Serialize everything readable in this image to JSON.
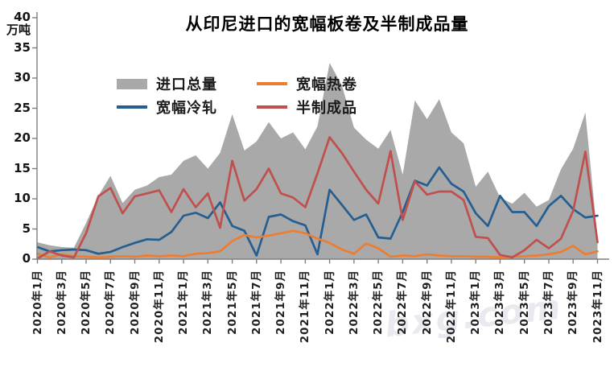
{
  "title": "从印尼进口的宽幅板卷及半制成品量",
  "unit_label": "万吨",
  "watermark": "bxg.com",
  "legend": [
    {
      "label": "进口总量",
      "type": "area",
      "color": "#A9A9A9"
    },
    {
      "label": "宽幅热卷",
      "type": "line",
      "color": "#ED7D31"
    },
    {
      "label": "宽幅冷轧",
      "type": "line",
      "color": "#255E91"
    },
    {
      "label": "半制成品",
      "type": "line",
      "color": "#C0504D"
    }
  ],
  "chart_data": {
    "type": "area",
    "title": "从印尼进口的宽幅板卷及半制成品量",
    "ylabel": "万吨",
    "ylim": [
      0,
      40
    ],
    "y_ticks": [
      0,
      5,
      10,
      15,
      20,
      25,
      30,
      35,
      40
    ],
    "grid": false,
    "legend_position": "top-inside",
    "x": [
      "2020年1月",
      "2020年2月",
      "2020年3月",
      "2020年4月",
      "2020年5月",
      "2020年6月",
      "2020年7月",
      "2020年8月",
      "2020年9月",
      "2020年10月",
      "2020年11月",
      "2020年12月",
      "2021年1月",
      "2021年2月",
      "2021年3月",
      "2021年4月",
      "2021年5月",
      "2021年6月",
      "2021年7月",
      "2021年8月",
      "2021年9月",
      "2021年10月",
      "2021年11月",
      "2021年12月",
      "2022年1月",
      "2022年2月",
      "2022年3月",
      "2022年4月",
      "2022年5月",
      "2022年6月",
      "2022年7月",
      "2022年8月",
      "2022年9月",
      "2022年10月",
      "2022年11月",
      "2022年12月",
      "2023年1月",
      "2023年2月",
      "2023年3月",
      "2023年4月",
      "2023年5月",
      "2023年6月",
      "2023年7月",
      "2023年8月",
      "2023年9月",
      "2023年10月",
      "2023年11月"
    ],
    "x_tick_labels": [
      "2020年1月",
      "2020年3月",
      "2020年5月",
      "2020年7月",
      "2020年9月",
      "2020年11月",
      "2021年1月",
      "2021年3月",
      "2021年5月",
      "2021年7月",
      "2021年9月",
      "2021年11月",
      "2022年1月",
      "2022年3月",
      "2022年5月",
      "2022年7月",
      "2022年9月",
      "2022年11月",
      "2023年1月",
      "2023年3月",
      "2023年5月",
      "2023年7月",
      "2023年9月",
      "2023年11月"
    ],
    "series": [
      {
        "name": "进口总量",
        "type": "area",
        "color": "#A9A9A9",
        "values": [
          2.8,
          2.3,
          2.0,
          1.9,
          6.0,
          10.5,
          13.8,
          9.3,
          11.5,
          12.2,
          13.6,
          14.0,
          16.3,
          17.2,
          15.0,
          17.6,
          24.0,
          18.0,
          19.5,
          22.7,
          20.0,
          21.0,
          18.2,
          22.0,
          32.5,
          28.8,
          21.8,
          19.8,
          18.3,
          21.4,
          14.0,
          26.3,
          23.2,
          26.5,
          21.0,
          19.2,
          12.0,
          14.5,
          10.2,
          9.2,
          11.0,
          8.7,
          9.8,
          14.9,
          18.3,
          24.3,
          3.5
        ]
      },
      {
        "name": "宽幅冷轧",
        "type": "line",
        "color": "#255E91",
        "values": [
          2.0,
          1.3,
          1.5,
          1.6,
          1.5,
          0.9,
          1.2,
          2.0,
          2.7,
          3.3,
          3.2,
          4.5,
          7.2,
          7.7,
          6.8,
          9.4,
          5.5,
          4.7,
          0.6,
          7.0,
          7.4,
          6.3,
          5.6,
          0.8,
          11.5,
          9.0,
          6.5,
          7.4,
          3.6,
          3.4,
          7.8,
          13.0,
          12.2,
          15.2,
          12.5,
          11.2,
          7.6,
          5.5,
          10.5,
          7.8,
          7.8,
          5.5,
          8.8,
          10.5,
          8.3,
          6.9,
          7.2
        ]
      },
      {
        "name": "宽幅热卷",
        "type": "line",
        "color": "#ED7D31",
        "values": [
          0.9,
          0.3,
          0.8,
          0.5,
          0.4,
          0.3,
          0.4,
          0.5,
          0.4,
          0.6,
          0.5,
          0.6,
          0.5,
          0.9,
          1.0,
          1.3,
          3.0,
          4.0,
          3.6,
          3.9,
          4.3,
          4.7,
          4.3,
          3.4,
          2.7,
          1.6,
          0.9,
          2.6,
          1.8,
          0.4,
          0.6,
          0.5,
          0.8,
          0.6,
          0.5,
          0.5,
          0.4,
          0.4,
          0.3,
          0.4,
          0.5,
          0.6,
          0.8,
          1.2,
          2.2,
          0.8,
          1.3
        ]
      },
      {
        "name": "半制成品",
        "type": "line",
        "color": "#C0504D",
        "values": [
          0.1,
          1.3,
          0.6,
          0.3,
          4.3,
          10.4,
          11.8,
          7.6,
          10.4,
          10.9,
          11.4,
          7.8,
          11.6,
          8.6,
          10.9,
          5.2,
          16.3,
          9.7,
          11.6,
          15.0,
          10.9,
          10.2,
          8.6,
          14.2,
          20.2,
          17.6,
          14.5,
          11.5,
          9.2,
          17.9,
          6.5,
          12.9,
          10.7,
          11.2,
          11.2,
          9.8,
          3.7,
          3.5,
          0.7,
          0.3,
          1.5,
          3.2,
          1.8,
          3.4,
          8.0,
          17.8,
          2.8
        ]
      }
    ]
  }
}
